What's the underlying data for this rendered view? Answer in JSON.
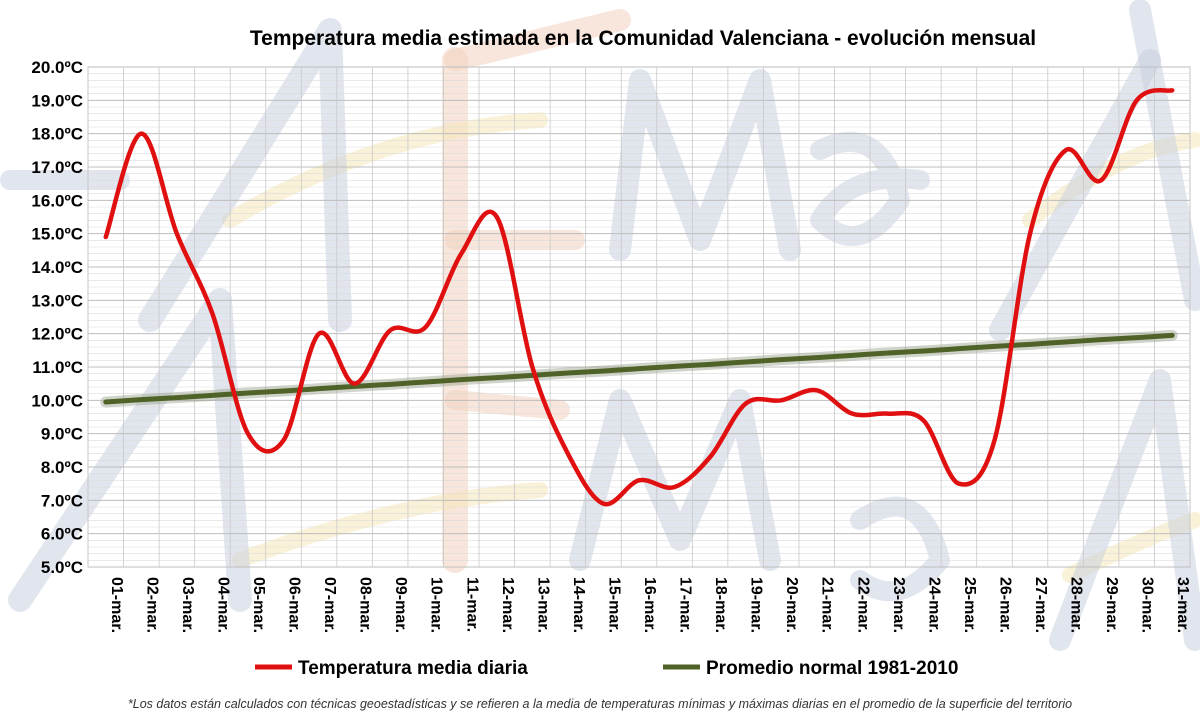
{
  "chart_data": {
    "type": "line",
    "title": "Temperatura media estimada en la Comunidad Valenciana - evolución mensual",
    "xlabel": "",
    "ylabel": "",
    "ylim": [
      5.0,
      20.0
    ],
    "ytick_step": 1.0,
    "y_unit": "ºC",
    "grid": true,
    "categories": [
      "01-mar.",
      "02-mar.",
      "03-mar.",
      "04-mar.",
      "05-mar.",
      "06-mar.",
      "07-mar.",
      "08-mar.",
      "09-mar.",
      "10-mar.",
      "11-mar.",
      "12-mar.",
      "13-mar.",
      "14-mar.",
      "15-mar.",
      "16-mar.",
      "17-mar.",
      "18-mar.",
      "19-mar.",
      "20-mar.",
      "21-mar.",
      "22-mar.",
      "23-mar.",
      "24-mar.",
      "25-mar.",
      "26-mar.",
      "27-mar.",
      "28-mar.",
      "29-mar.",
      "30-mar.",
      "31-mar."
    ],
    "series": [
      {
        "name": "Temperatura media diaria",
        "color": "#e01010",
        "values": [
          14.9,
          18.0,
          15.0,
          12.6,
          9.0,
          8.8,
          12.0,
          10.5,
          12.1,
          12.2,
          14.4,
          15.5,
          11.0,
          8.4,
          6.9,
          7.6,
          7.4,
          8.3,
          9.9,
          10.0,
          10.3,
          9.6,
          9.6,
          9.4,
          7.5,
          8.8,
          15.0,
          17.5,
          16.6,
          19.0,
          19.3
        ]
      },
      {
        "name": "Promedio normal 1981-2010",
        "color": "#4f6228",
        "values": [
          9.95,
          10.02,
          10.08,
          10.15,
          10.22,
          10.28,
          10.35,
          10.42,
          10.48,
          10.55,
          10.62,
          10.68,
          10.75,
          10.82,
          10.88,
          10.95,
          11.02,
          11.08,
          11.15,
          11.22,
          11.28,
          11.35,
          11.42,
          11.48,
          11.55,
          11.62,
          11.68,
          11.75,
          11.82,
          11.88,
          11.95
        ]
      }
    ],
    "legend_position": "bottom",
    "footnote": "*Los datos están calculados con técnicas geoestadísticas y se refieren a la media de temperaturas mínimas y máximas diarias en el promedio de la superficie del territorio"
  }
}
